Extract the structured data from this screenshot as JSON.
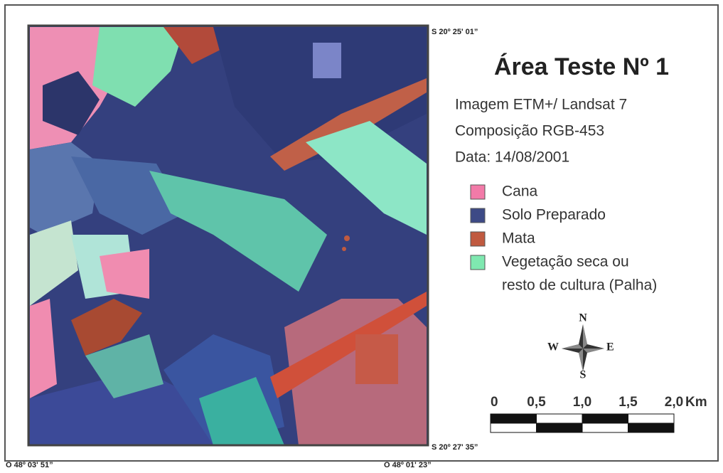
{
  "coordinates": {
    "top_right": "S 20º 25' 01”",
    "bottom_right": "S 20º 27' 35”",
    "bottom_left": "O 48º 03' 51”",
    "bottom_center": "O 48º 01' 23”"
  },
  "title": "Área Teste Nº 1",
  "info": [
    "Imagem ETM+/ Landsat 7",
    "Composição RGB-453",
    "Data: 14/08/2001"
  ],
  "legend": [
    {
      "lines": [
        "Cana"
      ],
      "color": "#f27aa8"
    },
    {
      "lines": [
        "Solo Preparado"
      ],
      "color": "#3d4a86"
    },
    {
      "lines": [
        "Mata"
      ],
      "color": "#c05a40"
    },
    {
      "lines": [
        "Vegetação seca ou",
        "resto de cultura (Palha)"
      ],
      "color": "#7fe8b0"
    }
  ],
  "compass": {
    "n": "N",
    "e": "E",
    "s": "S",
    "w": "W"
  },
  "scale": {
    "labels": [
      "0",
      "0,5",
      "1,0",
      "1,5",
      "2,0"
    ],
    "unit": "Km"
  }
}
